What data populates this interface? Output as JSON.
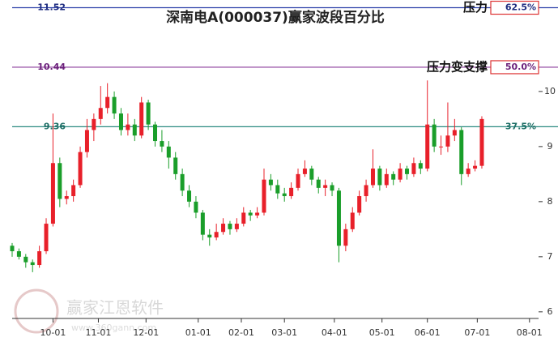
{
  "chart_data": {
    "type": "candlestick",
    "title": "深南电A(000037)赢家波段百分比",
    "watermark": [
      "赢家江恩软件",
      "www.360gann.com"
    ],
    "up_color": "#e8202a",
    "down_color": "#1a9e2a",
    "xlim": [
      0,
      232
    ],
    "ylim": [
      5.88,
      11.66
    ],
    "yticks": [
      6,
      7,
      8,
      9,
      10
    ],
    "xticks": [
      {
        "value": 18,
        "label": "10-01"
      },
      {
        "value": 38,
        "label": "11-01"
      },
      {
        "value": 59,
        "label": "12-01"
      },
      {
        "value": 82,
        "label": "01-01"
      },
      {
        "value": 101,
        "label": "02-01"
      },
      {
        "value": 120,
        "label": "03-01"
      },
      {
        "value": 142,
        "label": "04-01"
      },
      {
        "value": 163,
        "label": "05-01"
      },
      {
        "value": 183,
        "label": "06-01"
      },
      {
        "value": 205,
        "label": "07-01"
      },
      {
        "value": 228,
        "label": "08-01"
      }
    ],
    "levels": [
      {
        "value": 11.52,
        "percent": "62.5%",
        "note": "压力",
        "color": "#2b3fa8",
        "label_color": "#1f2d80"
      },
      {
        "value": 10.44,
        "percent": "50.0%",
        "note": "压力变支撑",
        "color": "#8a3a9a",
        "label_color": "#6a1f7a"
      },
      {
        "value": 9.36,
        "percent": "37.5%",
        "color": "#2a8a80",
        "label_color": "#1f6e66"
      }
    ],
    "x": [
      0,
      3,
      6,
      9,
      12,
      15,
      18,
      21,
      24,
      27,
      30,
      33,
      36,
      39,
      42,
      45,
      48,
      51,
      54,
      57,
      60,
      63,
      66,
      69,
      72,
      75,
      78,
      81,
      84,
      87,
      90,
      93,
      96,
      99,
      102,
      105,
      108,
      111,
      114,
      117,
      120,
      123,
      126,
      129,
      132,
      135,
      138,
      141,
      144,
      147,
      150,
      153,
      156,
      159,
      162,
      165,
      168,
      171,
      174,
      177,
      180,
      183,
      186,
      189,
      192,
      195,
      198,
      201,
      204,
      207
    ],
    "open": [
      7.2,
      7.1,
      7.0,
      6.9,
      6.85,
      7.1,
      7.6,
      8.7,
      8.05,
      8.1,
      8.3,
      8.9,
      9.3,
      9.5,
      9.7,
      9.9,
      9.6,
      9.3,
      9.4,
      9.2,
      9.8,
      9.4,
      9.1,
      9.0,
      8.8,
      8.5,
      8.2,
      8.0,
      7.8,
      7.4,
      7.35,
      7.45,
      7.6,
      7.5,
      7.6,
      7.8,
      7.75,
      7.8,
      8.4,
      8.3,
      8.15,
      8.1,
      8.25,
      8.5,
      8.6,
      8.4,
      8.25,
      8.3,
      8.2,
      7.2,
      7.5,
      7.8,
      8.1,
      8.3,
      8.6,
      8.3,
      8.5,
      8.4,
      8.6,
      8.5,
      8.7,
      8.6,
      9.4,
      9.0,
      9.0,
      9.2,
      9.3,
      8.5,
      8.6,
      8.65
    ],
    "high": [
      7.25,
      7.15,
      7.05,
      6.95,
      7.2,
      7.7,
      9.6,
      8.8,
      8.2,
      8.4,
      9.0,
      9.5,
      9.6,
      10.1,
      10.15,
      10.0,
      9.7,
      9.6,
      9.5,
      9.9,
      9.85,
      9.45,
      9.3,
      9.1,
      8.9,
      8.6,
      8.3,
      8.1,
      7.85,
      7.5,
      7.6,
      7.7,
      7.65,
      7.7,
      7.9,
      7.85,
      7.9,
      8.6,
      8.5,
      8.4,
      8.25,
      8.35,
      8.6,
      8.75,
      8.65,
      8.45,
      8.4,
      8.35,
      8.25,
      7.6,
      7.9,
      8.2,
      8.4,
      8.95,
      8.65,
      8.6,
      8.55,
      8.7,
      8.65,
      8.8,
      8.75,
      10.2,
      9.5,
      9.2,
      9.8,
      9.5,
      9.35,
      8.7,
      8.75,
      9.55
    ],
    "low": [
      7.0,
      6.95,
      6.8,
      6.72,
      6.8,
      7.05,
      7.55,
      7.9,
      7.95,
      8.0,
      8.25,
      8.8,
      9.1,
      9.4,
      9.6,
      9.5,
      9.2,
      9.2,
      9.1,
      9.15,
      9.3,
      9.0,
      8.9,
      8.6,
      8.4,
      8.1,
      7.9,
      7.7,
      7.3,
      7.2,
      7.3,
      7.4,
      7.4,
      7.45,
      7.55,
      7.65,
      7.7,
      7.75,
      8.2,
      8.05,
      8.0,
      8.05,
      8.2,
      8.45,
      8.3,
      8.15,
      8.1,
      8.1,
      6.9,
      7.1,
      7.45,
      7.75,
      8.0,
      8.25,
      8.2,
      8.25,
      8.3,
      8.35,
      8.4,
      8.45,
      8.5,
      8.55,
      8.9,
      8.85,
      8.9,
      9.1,
      8.3,
      8.45,
      8.55,
      8.6
    ],
    "close": [
      7.1,
      7.0,
      6.9,
      6.85,
      7.1,
      7.6,
      8.7,
      8.05,
      8.1,
      8.3,
      8.9,
      9.3,
      9.5,
      9.7,
      9.9,
      9.6,
      9.3,
      9.4,
      9.2,
      9.8,
      9.4,
      9.1,
      9.0,
      8.8,
      8.5,
      8.2,
      8.0,
      7.8,
      7.4,
      7.35,
      7.45,
      7.6,
      7.5,
      7.6,
      7.8,
      7.75,
      7.8,
      8.4,
      8.3,
      8.15,
      8.1,
      8.25,
      8.5,
      8.6,
      8.4,
      8.25,
      8.3,
      8.2,
      7.2,
      7.5,
      7.8,
      8.1,
      8.3,
      8.6,
      8.3,
      8.5,
      8.4,
      8.6,
      8.5,
      8.7,
      8.6,
      9.4,
      9.0,
      9.0,
      9.2,
      9.3,
      8.5,
      8.6,
      8.65,
      9.5
    ]
  }
}
